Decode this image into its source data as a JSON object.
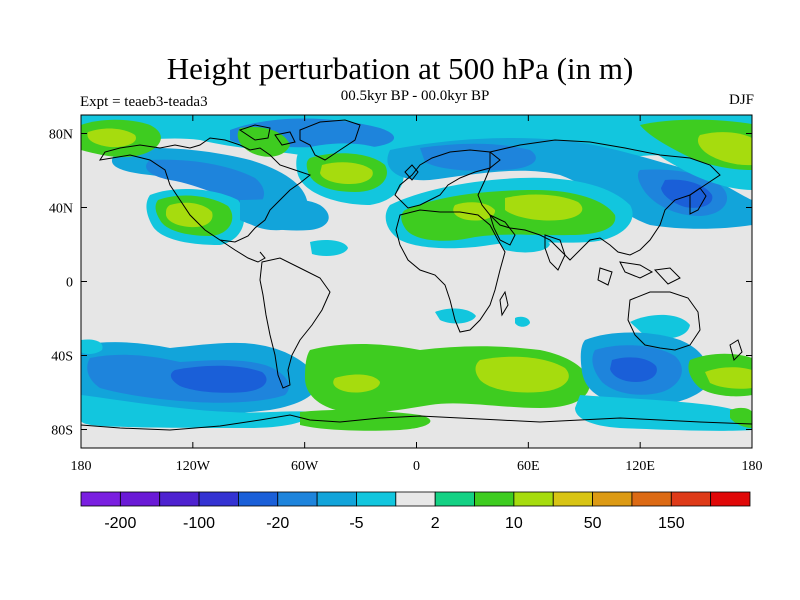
{
  "header": {
    "title": "Height perturbation at 500 hPa (in m)",
    "subtitle": "00.5kyr BP - 00.0kyr BP",
    "left_label": "Expt = teaeb3-teada3",
    "right_label": "DJF"
  },
  "map": {
    "projection": "cylindrical-equidistant",
    "lon_range": [
      -180,
      180
    ],
    "lat_range": [
      -90,
      90
    ],
    "lon_ticks": [
      {
        "value": -180,
        "label": "180"
      },
      {
        "value": -120,
        "label": "120W"
      },
      {
        "value": -60,
        "label": "60W"
      },
      {
        "value": 0,
        "label": "0"
      },
      {
        "value": 60,
        "label": "60E"
      },
      {
        "value": 120,
        "label": "120E"
      },
      {
        "value": 180,
        "label": "180"
      }
    ],
    "lat_ticks": [
      {
        "value": 80,
        "label": "80N"
      },
      {
        "value": 40,
        "label": "40N"
      },
      {
        "value": 0,
        "label": "0"
      },
      {
        "value": -40,
        "label": "40S"
      },
      {
        "value": -80,
        "label": "80S"
      }
    ],
    "background_color": "#e6e6e6"
  },
  "colorbar": {
    "colors": [
      "#7a1fe0",
      "#6a1ad6",
      "#4e22d0",
      "#3432d2",
      "#1a5fd8",
      "#1e84dc",
      "#12a4da",
      "#12c6de",
      "#e8e8e8",
      "#14d184",
      "#3ecc20",
      "#a6dc0e",
      "#d8c414",
      "#dc9a14",
      "#dc6a14",
      "#de3a18",
      "#e00808"
    ],
    "tick_labels": [
      {
        "index": 1,
        "label": "-200"
      },
      {
        "index": 3,
        "label": "-100"
      },
      {
        "index": 5,
        "label": "-20"
      },
      {
        "index": 7,
        "label": "-5"
      },
      {
        "index": 9,
        "label": "2"
      },
      {
        "index": 11,
        "label": "10"
      },
      {
        "index": 13,
        "label": "50"
      },
      {
        "index": 15,
        "label": "150"
      }
    ]
  }
}
